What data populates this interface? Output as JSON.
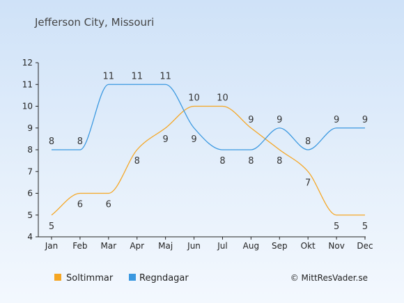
{
  "chart_data": {
    "type": "line",
    "title": "Jefferson City, Missouri",
    "categories": [
      "Jan",
      "Feb",
      "Mar",
      "Apr",
      "Maj",
      "Jun",
      "Jul",
      "Aug",
      "Sep",
      "Okt",
      "Nov",
      "Dec"
    ],
    "series": [
      {
        "name": "Soltimmar",
        "color": "#f5a623",
        "values": [
          5,
          6,
          6,
          8,
          9,
          10,
          10,
          9,
          8,
          7,
          5,
          5
        ]
      },
      {
        "name": "Regndagar",
        "color": "#3a98e0",
        "values": [
          8,
          8,
          11,
          11,
          11,
          9,
          8,
          8,
          9,
          8,
          9,
          9
        ]
      }
    ],
    "ylim": [
      4,
      12
    ],
    "yticks": [
      4,
      5,
      6,
      7,
      8,
      9,
      10,
      11,
      12
    ],
    "grid": false,
    "legend": "bottom-left",
    "credit": "© MittResVader.se"
  }
}
